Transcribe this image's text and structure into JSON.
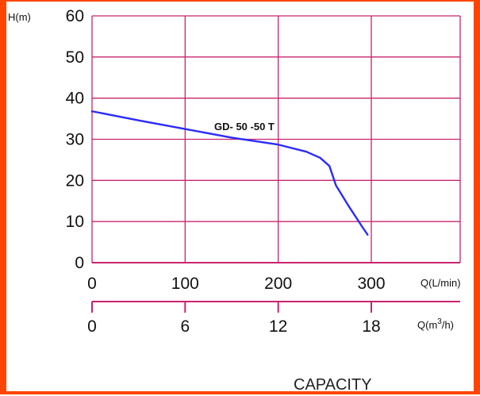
{
  "chart_data": {
    "type": "line",
    "ylabel": "H(m)",
    "xlabel_primary": "Q(L/min)",
    "xlabel_secondary": "Q(m3/h)",
    "xlabel_secondary_parts": {
      "prefix": "Q(m",
      "sup": "3",
      "suffix": "/h)"
    },
    "caption": "CAPACITY",
    "xlim": [
      0,
      300
    ],
    "ylim": [
      0,
      60
    ],
    "x_ticks": [
      0,
      100,
      200,
      300
    ],
    "y_ticks": [
      0,
      10,
      20,
      30,
      40,
      50,
      60
    ],
    "x_ticks_secondary": [
      0,
      6,
      12,
      18
    ],
    "grid": true,
    "series": [
      {
        "name": "GD- 50 -50 T",
        "color": "#2b2bff",
        "x": [
          0,
          50,
          100,
          150,
          200,
          230,
          245,
          255,
          258,
          262,
          275,
          290,
          296
        ],
        "y": [
          36.8,
          34.6,
          32.5,
          30.4,
          28.7,
          27.0,
          25.5,
          23.5,
          21.5,
          18.8,
          14.0,
          8.8,
          6.8
        ]
      }
    ]
  },
  "colors": {
    "frame": "#ff4500",
    "grid": "#c8246e",
    "curve": "#2b2bff"
  }
}
